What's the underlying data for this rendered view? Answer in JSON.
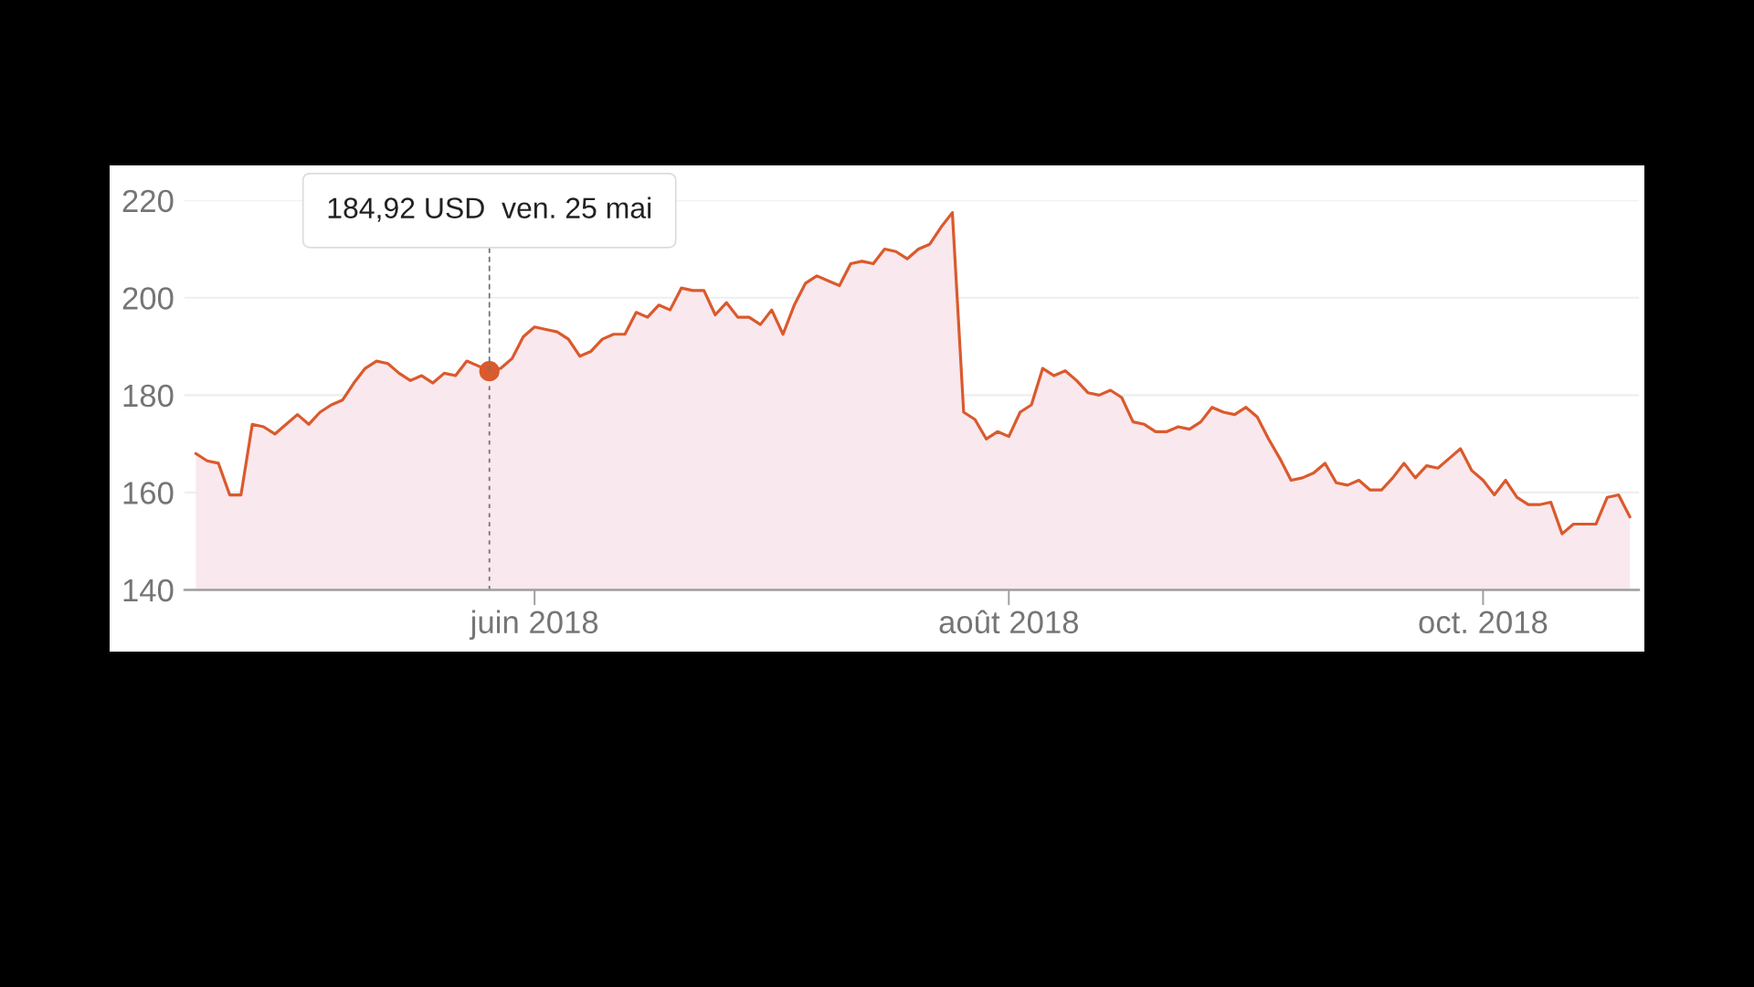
{
  "chart_data": {
    "type": "area",
    "categories": [
      null,
      null,
      null,
      null,
      null,
      null,
      null,
      null,
      null,
      null,
      null,
      null,
      null,
      null,
      null,
      null,
      null,
      null,
      null,
      null,
      null,
      null,
      null,
      null,
      null,
      null,
      null,
      null,
      null,
      null,
      "juin 2018",
      null,
      null,
      null,
      null,
      null,
      null,
      null,
      null,
      null,
      null,
      null,
      null,
      null,
      null,
      null,
      null,
      null,
      null,
      null,
      null,
      null,
      null,
      null,
      null,
      null,
      null,
      null,
      null,
      null,
      null,
      null,
      null,
      null,
      null,
      null,
      null,
      null,
      null,
      null,
      null,
      null,
      "août 2018",
      null,
      null,
      null,
      null,
      null,
      null,
      null,
      null,
      null,
      null,
      null,
      null,
      null,
      null,
      null,
      null,
      null,
      null,
      null,
      null,
      null,
      null,
      null,
      null,
      null,
      null,
      null,
      null,
      null,
      null,
      null,
      null,
      null,
      null,
      null,
      null,
      null,
      null,
      null,
      null,
      null,
      "oct. 2018",
      null,
      null,
      null,
      null,
      null,
      null,
      null,
      null,
      null,
      null,
      null,
      null,
      null
    ],
    "values": [
      168,
      166.5,
      166,
      159.5,
      159.5,
      174,
      173.5,
      172,
      174,
      176,
      174,
      176.5,
      178,
      179,
      182.5,
      185.5,
      187,
      186.5,
      184.5,
      183,
      184,
      182.5,
      184.5,
      184,
      187,
      186,
      184.92,
      185.5,
      187.5,
      192,
      194,
      193.5,
      193,
      191.5,
      188,
      189,
      191.5,
      192.5,
      192.5,
      197,
      196,
      198.5,
      197.5,
      202,
      201.5,
      201.5,
      196.5,
      199,
      196,
      196,
      194.5,
      197.5,
      192.5,
      198.5,
      203,
      204.5,
      203.5,
      202.5,
      207,
      207.5,
      207,
      210,
      209.5,
      208,
      210,
      211,
      214.5,
      217.5,
      176.5,
      175,
      171,
      172.5,
      171.5,
      176.5,
      178,
      185.5,
      184,
      185,
      183,
      180.5,
      180,
      181,
      179.5,
      174.5,
      174,
      172.5,
      172.5,
      173.5,
      173,
      174.5,
      177.5,
      176.5,
      176,
      177.5,
      175.5,
      171,
      167,
      162.5,
      163,
      164,
      166,
      162,
      161.5,
      162.5,
      160.5,
      160.5,
      163,
      166,
      163,
      165.5,
      165,
      167,
      169,
      164.5,
      162.5,
      159.5,
      162.5,
      159,
      157.5,
      157.5,
      158,
      151.5,
      153.5,
      153.5,
      153.5,
      159,
      159.5,
      155
    ],
    "color": "#da5a2d",
    "ylim": [
      140,
      220
    ],
    "yticks": [
      140,
      160,
      180,
      200,
      220
    ],
    "grid": "y",
    "annotations": [
      {
        "text": "184,92 USD  ven. 25 mai",
        "y": 184.92
      }
    ]
  }
}
